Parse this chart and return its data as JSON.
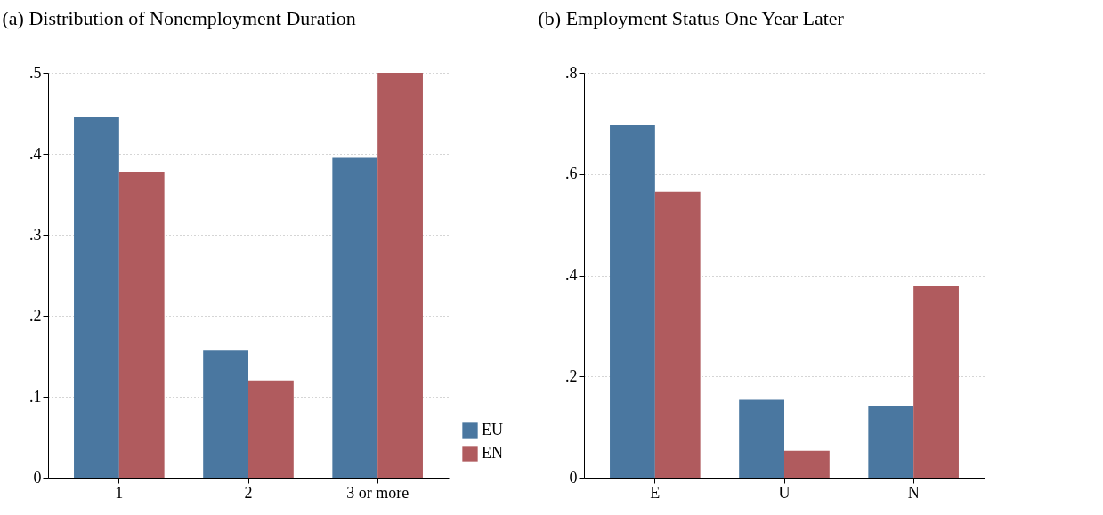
{
  "chart_data": [
    {
      "type": "bar",
      "title": "(a) Distribution of Nonemployment Duration",
      "categories": [
        "1",
        "2",
        "3 or more"
      ],
      "series": [
        {
          "name": "EU",
          "color": "#4a77a0",
          "values": [
            0.446,
            0.157,
            0.395
          ]
        },
        {
          "name": "EN",
          "color": "#b05b5e",
          "values": [
            0.378,
            0.12,
            0.5
          ]
        }
      ],
      "ylim": [
        0,
        0.5
      ],
      "yticks": [
        0,
        {
          "value": 0.1,
          "label": ".1"
        },
        {
          "value": 0.2,
          "label": ".2"
        },
        {
          "value": 0.3,
          "label": ".3"
        },
        {
          "value": 0.4,
          "label": ".4"
        },
        {
          "value": 0.5,
          "label": ".5"
        }
      ],
      "grid": "y",
      "legend": "bottom right"
    },
    {
      "type": "bar",
      "title": "(b) Employment Status One Year Later",
      "categories": [
        "E",
        "U",
        "N"
      ],
      "series": [
        {
          "name": "EU",
          "color": "#4a77a0",
          "values": [
            0.698,
            0.154,
            0.142
          ]
        },
        {
          "name": "EN",
          "color": "#b05b5e",
          "values": [
            0.565,
            0.053,
            0.379
          ]
        }
      ],
      "ylim": [
        0,
        0.8
      ],
      "yticks": [
        0,
        {
          "value": 0.2,
          "label": ".2"
        },
        {
          "value": 0.4,
          "label": ".4"
        },
        {
          "value": 0.6,
          "label": ".6"
        },
        {
          "value": 0.8,
          "label": ".8"
        }
      ],
      "grid": "y",
      "legend": "bottom right"
    }
  ]
}
